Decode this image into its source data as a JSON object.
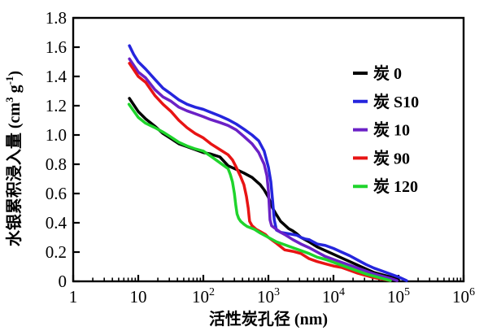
{
  "chart_data": {
    "type": "line",
    "title": "",
    "xlabel": "活性炭孔径 (nm)",
    "ylabel": "水银累积浸入量 (cm³ g⁻¹)",
    "ylabel_rich": [
      {
        "t": "水银累积浸入量 (cm"
      },
      {
        "t": "3",
        "sup": true
      },
      {
        "t": " g"
      },
      {
        "t": "-1",
        "sup": true
      },
      {
        "t": ")"
      }
    ],
    "xscale": "log",
    "xlim": [
      1,
      1000000
    ],
    "ylim": [
      0,
      1.8
    ],
    "grid": false,
    "axis_color": "#000000",
    "background_color": "#ffffff",
    "legend_position": "inside-upper-right",
    "x_ticks": [
      {
        "text": "1",
        "sup": ""
      },
      {
        "text": "10",
        "sup": ""
      },
      {
        "text": "10",
        "sup": "2"
      },
      {
        "text": "10",
        "sup": "3"
      },
      {
        "text": "10",
        "sup": "4"
      },
      {
        "text": "10",
        "sup": "5"
      },
      {
        "text": "10",
        "sup": "6"
      }
    ],
    "y_ticks": [
      "0",
      "0.2",
      "0.4",
      "0.6",
      "0.8",
      "1.0",
      "1.2",
      "1.4",
      "1.6",
      "1.8"
    ],
    "series": [
      {
        "name": "炭 0",
        "color": "#000000",
        "points": [
          [
            7.3,
            1.25
          ],
          [
            10,
            1.16
          ],
          [
            13,
            1.11
          ],
          [
            18,
            1.06
          ],
          [
            24,
            1.01
          ],
          [
            32,
            0.975
          ],
          [
            42,
            0.94
          ],
          [
            56,
            0.92
          ],
          [
            75,
            0.9
          ],
          [
            100,
            0.88
          ],
          [
            130,
            0.87
          ],
          [
            180,
            0.85
          ],
          [
            240,
            0.79
          ],
          [
            320,
            0.765
          ],
          [
            420,
            0.74
          ],
          [
            560,
            0.71
          ],
          [
            750,
            0.66
          ],
          [
            860,
            0.625
          ],
          [
            1000,
            0.575
          ],
          [
            1160,
            0.5
          ],
          [
            1330,
            0.455
          ],
          [
            1540,
            0.41
          ],
          [
            1780,
            0.385
          ],
          [
            2050,
            0.36
          ],
          [
            2370,
            0.345
          ],
          [
            2740,
            0.325
          ],
          [
            3160,
            0.3
          ],
          [
            3650,
            0.285
          ],
          [
            4220,
            0.27
          ],
          [
            5620,
            0.235
          ],
          [
            7500,
            0.21
          ],
          [
            10000,
            0.185
          ],
          [
            13300,
            0.16
          ],
          [
            17800,
            0.135
          ],
          [
            23700,
            0.11
          ],
          [
            31600,
            0.085
          ],
          [
            42200,
            0.06
          ],
          [
            56200,
            0.045
          ],
          [
            75000,
            0.03
          ],
          [
            100000,
            0.01
          ]
        ]
      },
      {
        "name": "炭 S10",
        "color": "#2525dd",
        "points": [
          [
            7.3,
            1.61
          ],
          [
            8.5,
            1.55
          ],
          [
            10,
            1.5
          ],
          [
            13,
            1.45
          ],
          [
            18,
            1.38
          ],
          [
            24,
            1.32
          ],
          [
            32,
            1.28
          ],
          [
            42,
            1.24
          ],
          [
            56,
            1.21
          ],
          [
            75,
            1.19
          ],
          [
            100,
            1.175
          ],
          [
            130,
            1.155
          ],
          [
            180,
            1.13
          ],
          [
            240,
            1.105
          ],
          [
            320,
            1.075
          ],
          [
            420,
            1.04
          ],
          [
            560,
            1.0
          ],
          [
            710,
            0.96
          ],
          [
            860,
            0.89
          ],
          [
            1000,
            0.78
          ],
          [
            1090,
            0.68
          ],
          [
            1160,
            0.55
          ],
          [
            1230,
            0.42
          ],
          [
            1330,
            0.35
          ],
          [
            1540,
            0.335
          ],
          [
            1780,
            0.33
          ],
          [
            2050,
            0.325
          ],
          [
            2370,
            0.32
          ],
          [
            2740,
            0.315
          ],
          [
            3160,
            0.3
          ],
          [
            3650,
            0.29
          ],
          [
            4220,
            0.285
          ],
          [
            5620,
            0.255
          ],
          [
            7500,
            0.245
          ],
          [
            10000,
            0.225
          ],
          [
            13300,
            0.2
          ],
          [
            17800,
            0.175
          ],
          [
            23700,
            0.145
          ],
          [
            31600,
            0.115
          ],
          [
            42200,
            0.09
          ],
          [
            56200,
            0.07
          ],
          [
            75000,
            0.05
          ],
          [
            100000,
            0.03
          ],
          [
            133000,
            0.005
          ]
        ]
      },
      {
        "name": "炭 10",
        "color": "#6b21c6",
        "points": [
          [
            7.3,
            1.52
          ],
          [
            10,
            1.43
          ],
          [
            13,
            1.39
          ],
          [
            18,
            1.31
          ],
          [
            24,
            1.26
          ],
          [
            32,
            1.23
          ],
          [
            42,
            1.19
          ],
          [
            56,
            1.165
          ],
          [
            75,
            1.145
          ],
          [
            100,
            1.125
          ],
          [
            130,
            1.105
          ],
          [
            180,
            1.085
          ],
          [
            240,
            1.065
          ],
          [
            320,
            1.035
          ],
          [
            420,
            0.99
          ],
          [
            560,
            0.94
          ],
          [
            710,
            0.88
          ],
          [
            860,
            0.8
          ],
          [
            950,
            0.72
          ],
          [
            1000,
            0.62
          ],
          [
            1030,
            0.52
          ],
          [
            1060,
            0.42
          ],
          [
            1120,
            0.38
          ],
          [
            1330,
            0.355
          ],
          [
            1540,
            0.335
          ],
          [
            1780,
            0.32
          ],
          [
            2370,
            0.285
          ],
          [
            3160,
            0.255
          ],
          [
            4220,
            0.23
          ],
          [
            5620,
            0.2
          ],
          [
            7500,
            0.17
          ],
          [
            10000,
            0.15
          ],
          [
            13300,
            0.13
          ],
          [
            17800,
            0.11
          ],
          [
            23700,
            0.09
          ],
          [
            31600,
            0.07
          ],
          [
            42200,
            0.05
          ],
          [
            56200,
            0.035
          ],
          [
            75000,
            0.02
          ],
          [
            95000,
            0.005
          ]
        ]
      },
      {
        "name": "炭 90",
        "color": "#e81414",
        "points": [
          [
            7.3,
            1.49
          ],
          [
            10,
            1.4
          ],
          [
            13,
            1.36
          ],
          [
            18,
            1.27
          ],
          [
            24,
            1.21
          ],
          [
            32,
            1.16
          ],
          [
            42,
            1.1
          ],
          [
            56,
            1.05
          ],
          [
            75,
            1.01
          ],
          [
            100,
            0.98
          ],
          [
            130,
            0.94
          ],
          [
            180,
            0.9
          ],
          [
            240,
            0.865
          ],
          [
            280,
            0.83
          ],
          [
            320,
            0.78
          ],
          [
            370,
            0.72
          ],
          [
            420,
            0.66
          ],
          [
            460,
            0.58
          ],
          [
            490,
            0.5
          ],
          [
            505,
            0.44
          ],
          [
            515,
            0.41
          ],
          [
            560,
            0.38
          ],
          [
            650,
            0.355
          ],
          [
            750,
            0.34
          ],
          [
            900,
            0.32
          ],
          [
            1000,
            0.3
          ],
          [
            1330,
            0.26
          ],
          [
            1780,
            0.215
          ],
          [
            2370,
            0.205
          ],
          [
            3160,
            0.19
          ],
          [
            4220,
            0.155
          ],
          [
            5620,
            0.135
          ],
          [
            7500,
            0.12
          ],
          [
            10000,
            0.105
          ],
          [
            13300,
            0.095
          ],
          [
            17800,
            0.075
          ],
          [
            23700,
            0.055
          ],
          [
            31600,
            0.04
          ],
          [
            42200,
            0.025
          ],
          [
            56200,
            0.015
          ],
          [
            75000,
            0.005
          ]
        ]
      },
      {
        "name": "炭 120",
        "color": "#1fd42c",
        "points": [
          [
            7.2,
            1.21
          ],
          [
            10,
            1.12
          ],
          [
            13,
            1.08
          ],
          [
            18,
            1.05
          ],
          [
            24,
            1.02
          ],
          [
            32,
            0.985
          ],
          [
            42,
            0.95
          ],
          [
            56,
            0.925
          ],
          [
            75,
            0.905
          ],
          [
            100,
            0.89
          ],
          [
            130,
            0.855
          ],
          [
            180,
            0.81
          ],
          [
            240,
            0.77
          ],
          [
            260,
            0.73
          ],
          [
            280,
            0.68
          ],
          [
            300,
            0.6
          ],
          [
            315,
            0.52
          ],
          [
            330,
            0.46
          ],
          [
            350,
            0.43
          ],
          [
            375,
            0.41
          ],
          [
            422,
            0.39
          ],
          [
            470,
            0.375
          ],
          [
            613,
            0.355
          ],
          [
            750,
            0.33
          ],
          [
            1000,
            0.3
          ],
          [
            1330,
            0.27
          ],
          [
            1780,
            0.25
          ],
          [
            2370,
            0.23
          ],
          [
            3160,
            0.21
          ],
          [
            4220,
            0.19
          ],
          [
            5620,
            0.165
          ],
          [
            7500,
            0.15
          ],
          [
            10000,
            0.13
          ],
          [
            13300,
            0.11
          ],
          [
            17800,
            0.09
          ],
          [
            23700,
            0.07
          ],
          [
            31600,
            0.05
          ],
          [
            42200,
            0.035
          ],
          [
            56200,
            0.02
          ],
          [
            75000,
            0.005
          ]
        ]
      }
    ]
  }
}
